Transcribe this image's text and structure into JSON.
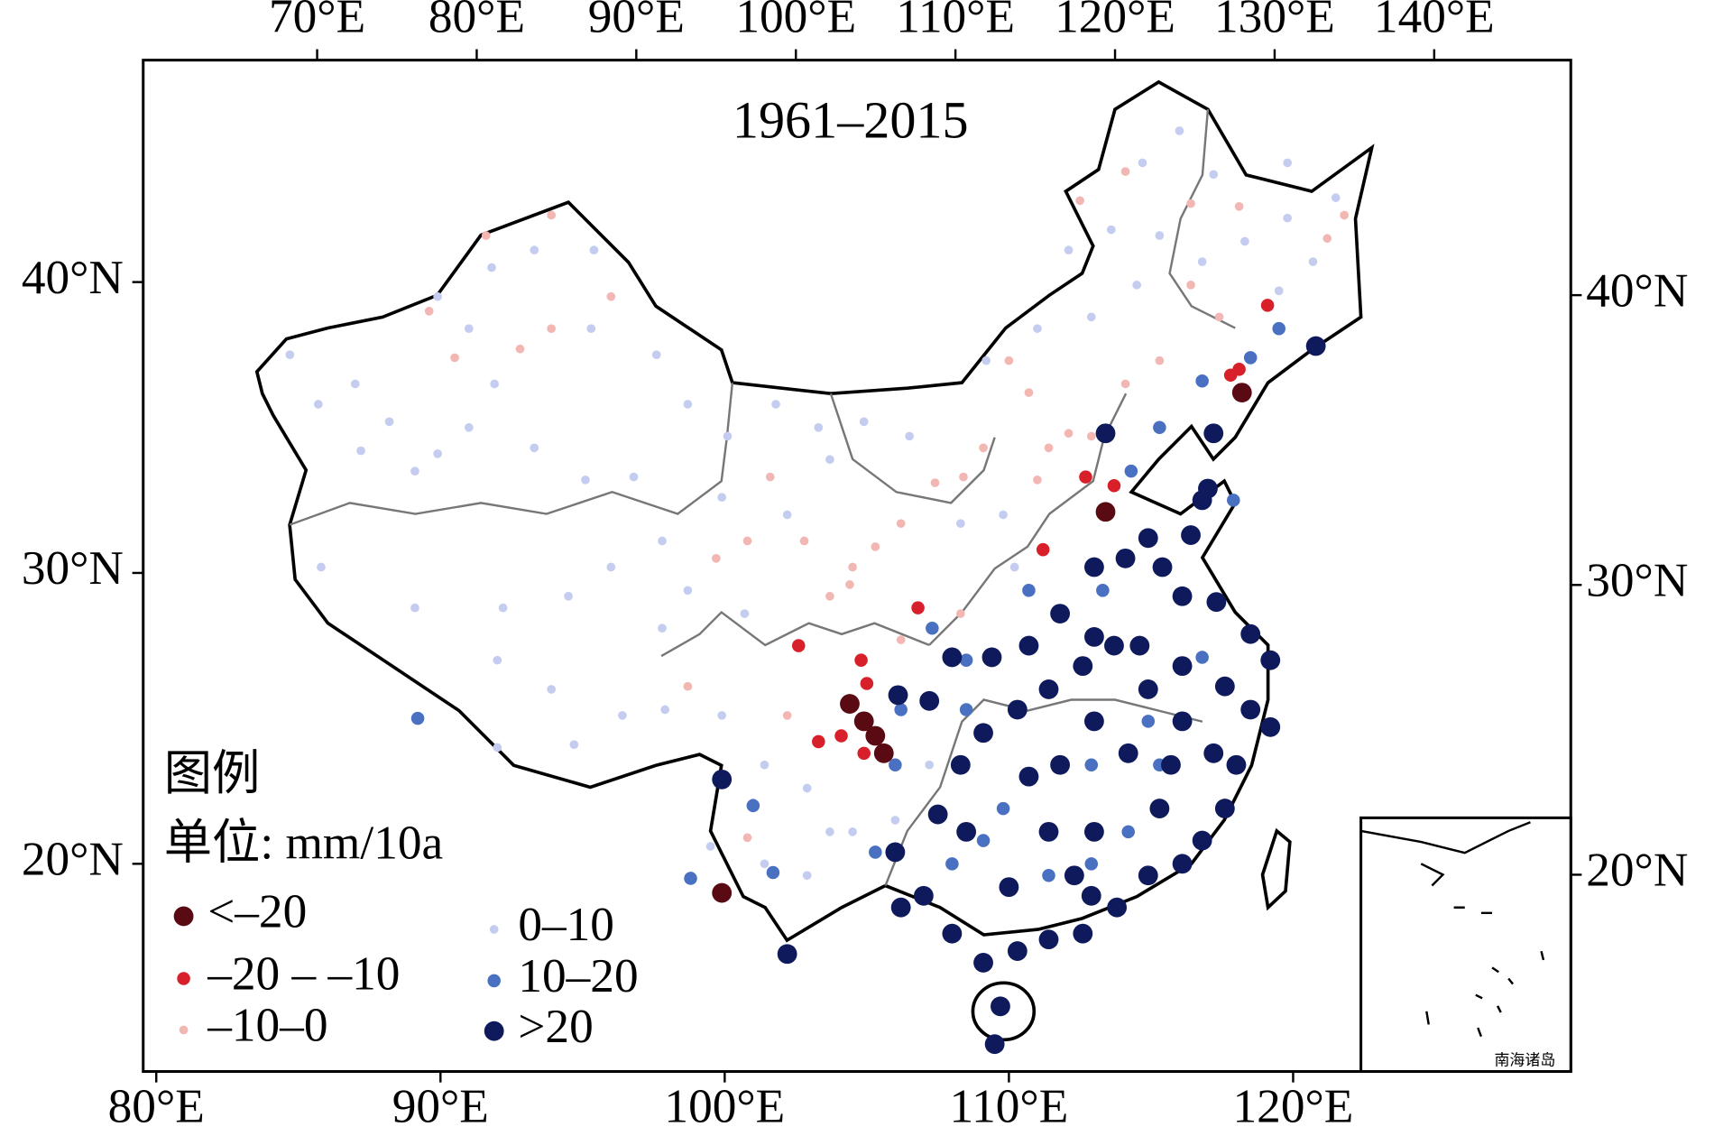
{
  "chart_data": {
    "type": "map",
    "title": "1961–2015",
    "xlim": [
      79.54,
      129.77
    ],
    "ylim": [
      12.86,
      47.63
    ],
    "x2lim": [
      59.1,
      148.56
    ],
    "y2lim": [
      13.21,
      48.11
    ],
    "xticks": [
      {
        "value": 80,
        "label": "80°E"
      },
      {
        "value": 90,
        "label": "90°E"
      },
      {
        "value": 100,
        "label": "100°E"
      },
      {
        "value": 110,
        "label": "110°E"
      },
      {
        "value": 120,
        "label": "120°E"
      }
    ],
    "x2ticks": [
      {
        "value": 70,
        "label": "70°E"
      },
      {
        "value": 80,
        "label": "80°E"
      },
      {
        "value": 90,
        "label": "90°E"
      },
      {
        "value": 100,
        "label": "100°E"
      },
      {
        "value": 110,
        "label": "110°E"
      },
      {
        "value": 120,
        "label": "120°E"
      },
      {
        "value": 130,
        "label": "130°E"
      },
      {
        "value": 140,
        "label": "140°E"
      }
    ],
    "yticks": [
      {
        "value": 20,
        "label": "20°N"
      },
      {
        "value": 30,
        "label": "30°N"
      },
      {
        "value": 40,
        "label": "40°N"
      }
    ],
    "y2ticks": [
      {
        "value": 20,
        "label": "20°N"
      },
      {
        "value": 30,
        "label": "30°N"
      },
      {
        "value": 40,
        "label": "40°N"
      }
    ],
    "legend": {
      "title": "图例",
      "unit": "单位: mm/10a"
    },
    "classes": [
      {
        "name": "<–20",
        "color": "#5a0a12"
      },
      {
        "name": "–20 – –10",
        "color": "#d8202b"
      },
      {
        "name": "–10–0",
        "color": "#f3b7b3"
      },
      {
        "name": "0–10",
        "color": "#c4cdef"
      },
      {
        "name": "10–20",
        "color": "#4a70c2"
      },
      {
        "name": ">20",
        "color": "#0f1a5c"
      }
    ],
    "inset_label": "南海诸岛",
    "stations": [
      [
        118.2,
        36.2,
        0
      ],
      [
        113.4,
        32.1,
        0
      ],
      [
        104.4,
        25.5,
        0
      ],
      [
        104.9,
        24.9,
        0
      ],
      [
        105.3,
        24.4,
        0
      ],
      [
        105.6,
        23.8,
        0
      ],
      [
        99.9,
        19.0,
        0
      ],
      [
        119.1,
        39.2,
        1
      ],
      [
        117.8,
        36.8,
        1
      ],
      [
        118.1,
        37.0,
        1
      ],
      [
        112.7,
        33.3,
        1
      ],
      [
        113.7,
        33.0,
        1
      ],
      [
        111.2,
        30.8,
        1
      ],
      [
        106.8,
        28.8,
        1
      ],
      [
        102.6,
        27.5,
        1
      ],
      [
        104.8,
        27.0,
        1
      ],
      [
        105.0,
        26.2,
        1
      ],
      [
        103.3,
        24.2,
        1
      ],
      [
        104.1,
        24.4,
        1
      ],
      [
        104.9,
        23.8,
        1
      ],
      [
        91.6,
        41.6,
        2
      ],
      [
        93.9,
        42.3,
        2
      ],
      [
        96.0,
        39.5,
        2
      ],
      [
        89.6,
        39.0,
        2
      ],
      [
        90.5,
        37.4,
        2
      ],
      [
        92.8,
        37.7,
        2
      ],
      [
        93.9,
        38.4,
        2
      ],
      [
        112.5,
        42.8,
        2
      ],
      [
        114.1,
        43.8,
        2
      ],
      [
        116.4,
        42.7,
        2
      ],
      [
        118.1,
        42.6,
        2
      ],
      [
        121.8,
        42.3,
        2
      ],
      [
        121.2,
        41.5,
        2
      ],
      [
        116.4,
        39.9,
        2
      ],
      [
        117.4,
        38.8,
        2
      ],
      [
        115.3,
        37.3,
        2
      ],
      [
        114.1,
        36.5,
        2
      ],
      [
        110.7,
        36.2,
        2
      ],
      [
        110.0,
        37.3,
        2
      ],
      [
        112.1,
        34.8,
        2
      ],
      [
        111.0,
        33.2,
        2
      ],
      [
        109.1,
        34.3,
        2
      ],
      [
        108.4,
        33.3,
        2
      ],
      [
        107.4,
        33.1,
        2
      ],
      [
        106.2,
        31.7,
        2
      ],
      [
        105.3,
        30.9,
        2
      ],
      [
        104.5,
        30.2,
        2
      ],
      [
        103.7,
        29.2,
        2
      ],
      [
        102.8,
        31.1,
        2
      ],
      [
        101.6,
        33.3,
        2
      ],
      [
        99.7,
        30.5,
        2
      ],
      [
        100.8,
        31.1,
        2
      ],
      [
        98.7,
        26.1,
        2
      ],
      [
        100.8,
        20.9,
        2
      ],
      [
        102.2,
        25.1,
        2
      ],
      [
        104.4,
        29.6,
        2
      ],
      [
        106.2,
        27.7,
        2
      ],
      [
        108.3,
        28.6,
        2
      ],
      [
        111.4,
        34.3,
        2
      ],
      [
        112.9,
        34.7,
        2
      ],
      [
        84.7,
        37.5,
        3
      ],
      [
        85.7,
        35.8,
        3
      ],
      [
        87.0,
        36.5,
        3
      ],
      [
        87.2,
        34.2,
        3
      ],
      [
        88.2,
        35.2,
        3
      ],
      [
        89.1,
        33.5,
        3
      ],
      [
        89.9,
        34.1,
        3
      ],
      [
        91.0,
        35.0,
        3
      ],
      [
        91.9,
        36.5,
        3
      ],
      [
        93.3,
        34.3,
        3
      ],
      [
        95.1,
        33.2,
        3
      ],
      [
        96.8,
        33.3,
        3
      ],
      [
        97.8,
        31.1,
        3
      ],
      [
        96.0,
        30.2,
        3
      ],
      [
        94.5,
        29.2,
        3
      ],
      [
        92.2,
        28.8,
        3
      ],
      [
        89.1,
        28.8,
        3
      ],
      [
        85.8,
        30.2,
        3
      ],
      [
        92.0,
        27.0,
        3
      ],
      [
        93.9,
        26.0,
        3
      ],
      [
        96.4,
        25.1,
        3
      ],
      [
        97.9,
        25.3,
        3
      ],
      [
        94.7,
        24.1,
        3
      ],
      [
        92.0,
        24.0,
        3
      ],
      [
        91.8,
        40.5,
        3
      ],
      [
        93.3,
        41.1,
        3
      ],
      [
        95.4,
        41.1,
        3
      ],
      [
        89.9,
        39.5,
        3
      ],
      [
        91.0,
        38.4,
        3
      ],
      [
        95.3,
        38.4,
        3
      ],
      [
        97.6,
        37.5,
        3
      ],
      [
        98.7,
        35.8,
        3
      ],
      [
        100.1,
        34.7,
        3
      ],
      [
        101.8,
        35.8,
        3
      ],
      [
        103.3,
        35.0,
        3
      ],
      [
        104.9,
        35.2,
        3
      ],
      [
        106.5,
        34.7,
        3
      ],
      [
        103.7,
        33.9,
        3
      ],
      [
        102.2,
        32.0,
        3
      ],
      [
        99.9,
        32.6,
        3
      ],
      [
        98.7,
        29.4,
        3
      ],
      [
        100.7,
        28.6,
        3
      ],
      [
        97.8,
        28.1,
        3
      ],
      [
        99.9,
        25.1,
        3
      ],
      [
        101.4,
        23.4,
        3
      ],
      [
        102.9,
        22.6,
        3
      ],
      [
        99.5,
        20.6,
        3
      ],
      [
        101.4,
        20.0,
        3
      ],
      [
        102.9,
        19.6,
        3
      ],
      [
        104.5,
        21.1,
        3
      ],
      [
        106.0,
        21.5,
        3
      ],
      [
        107.2,
        23.4,
        3
      ],
      [
        109.2,
        37.3,
        3
      ],
      [
        111.0,
        38.4,
        3
      ],
      [
        112.9,
        38.8,
        3
      ],
      [
        114.5,
        39.9,
        3
      ],
      [
        115.3,
        41.6,
        3
      ],
      [
        116.8,
        40.7,
        3
      ],
      [
        118.3,
        41.4,
        3
      ],
      [
        119.8,
        42.2,
        3
      ],
      [
        120.7,
        40.7,
        3
      ],
      [
        119.5,
        39.7,
        3
      ],
      [
        114.7,
        44.1,
        3
      ],
      [
        116.0,
        45.2,
        3
      ],
      [
        117.2,
        43.7,
        3
      ],
      [
        119.8,
        44.1,
        3
      ],
      [
        121.5,
        42.9,
        3
      ],
      [
        113.6,
        41.8,
        3
      ],
      [
        112.1,
        41.1,
        3
      ],
      [
        108.3,
        31.7,
        3
      ],
      [
        109.8,
        32.0,
        3
      ],
      [
        110.2,
        30.2,
        3
      ],
      [
        103.7,
        21.1,
        3
      ],
      [
        101.0,
        22.1,
        3
      ],
      [
        119.5,
        38.4,
        4
      ],
      [
        118.5,
        37.4,
        4
      ],
      [
        116.8,
        36.6,
        4
      ],
      [
        115.3,
        35.0,
        4
      ],
      [
        114.3,
        33.5,
        4
      ],
      [
        117.9,
        32.5,
        4
      ],
      [
        113.3,
        29.4,
        4
      ],
      [
        110.7,
        29.4,
        4
      ],
      [
        107.3,
        28.1,
        4
      ],
      [
        108.5,
        27.0,
        4
      ],
      [
        106.2,
        25.3,
        4
      ],
      [
        106.0,
        23.4,
        4
      ],
      [
        108.5,
        25.3,
        4
      ],
      [
        109.8,
        21.9,
        4
      ],
      [
        112.9,
        23.4,
        4
      ],
      [
        114.9,
        24.9,
        4
      ],
      [
        116.8,
        27.1,
        4
      ],
      [
        115.3,
        23.4,
        4
      ],
      [
        114.2,
        21.1,
        4
      ],
      [
        112.9,
        20.0,
        4
      ],
      [
        111.4,
        19.6,
        4
      ],
      [
        109.1,
        20.8,
        4
      ],
      [
        108.0,
        20.0,
        4
      ],
      [
        105.3,
        20.4,
        4
      ],
      [
        101.7,
        19.7,
        4
      ],
      [
        101.0,
        22.0,
        4
      ],
      [
        98.8,
        19.5,
        4
      ],
      [
        89.2,
        25.0,
        4
      ],
      [
        120.8,
        37.8,
        5
      ],
      [
        117.2,
        34.8,
        5
      ],
      [
        113.4,
        34.8,
        5
      ],
      [
        117.0,
        32.9,
        5
      ],
      [
        116.4,
        31.3,
        5
      ],
      [
        114.9,
        31.2,
        5
      ],
      [
        114.1,
        30.5,
        5
      ],
      [
        113.0,
        30.2,
        5
      ],
      [
        115.4,
        30.2,
        5
      ],
      [
        116.1,
        29.2,
        5
      ],
      [
        117.3,
        29.0,
        5
      ],
      [
        118.5,
        27.9,
        5
      ],
      [
        119.2,
        27.0,
        5
      ],
      [
        118.5,
        25.3,
        5
      ],
      [
        119.2,
        24.7,
        5
      ],
      [
        118.0,
        23.4,
        5
      ],
      [
        117.6,
        21.9,
        5
      ],
      [
        116.8,
        20.8,
        5
      ],
      [
        116.1,
        20.0,
        5
      ],
      [
        114.9,
        19.6,
        5
      ],
      [
        113.8,
        18.5,
        5
      ],
      [
        112.6,
        17.6,
        5
      ],
      [
        111.4,
        17.4,
        5
      ],
      [
        110.3,
        17.0,
        5
      ],
      [
        109.1,
        16.6,
        5
      ],
      [
        109.7,
        15.1,
        5
      ],
      [
        109.5,
        13.8,
        5
      ],
      [
        108.0,
        17.6,
        5
      ],
      [
        107.0,
        18.9,
        5
      ],
      [
        106.2,
        18.5,
        5
      ],
      [
        106.0,
        20.4,
        5
      ],
      [
        107.5,
        21.7,
        5
      ],
      [
        108.3,
        23.4,
        5
      ],
      [
        109.1,
        24.5,
        5
      ],
      [
        110.3,
        25.3,
        5
      ],
      [
        111.4,
        26.0,
        5
      ],
      [
        112.6,
        26.8,
        5
      ],
      [
        113.7,
        27.5,
        5
      ],
      [
        114.9,
        26.0,
        5
      ],
      [
        116.1,
        24.9,
        5
      ],
      [
        115.7,
        23.4,
        5
      ],
      [
        114.2,
        23.8,
        5
      ],
      [
        113.0,
        24.9,
        5
      ],
      [
        111.8,
        23.4,
        5
      ],
      [
        110.7,
        23.0,
        5
      ],
      [
        111.4,
        21.1,
        5
      ],
      [
        113.0,
        21.1,
        5
      ],
      [
        115.3,
        21.9,
        5
      ],
      [
        112.3,
        19.6,
        5
      ],
      [
        110.0,
        19.2,
        5
      ],
      [
        108.5,
        21.1,
        5
      ],
      [
        107.2,
        25.6,
        5
      ],
      [
        106.1,
        25.8,
        5
      ],
      [
        108.0,
        27.1,
        5
      ],
      [
        109.4,
        27.1,
        5
      ],
      [
        110.7,
        27.5,
        5
      ],
      [
        111.8,
        28.6,
        5
      ],
      [
        113.0,
        27.8,
        5
      ],
      [
        114.6,
        27.5,
        5
      ],
      [
        116.1,
        26.8,
        5
      ],
      [
        117.6,
        26.1,
        5
      ],
      [
        117.2,
        23.8,
        5
      ],
      [
        99.9,
        22.9,
        5
      ],
      [
        102.2,
        16.9,
        5
      ],
      [
        116.8,
        32.5,
        5
      ],
      [
        112.9,
        18.9,
        5
      ]
    ]
  }
}
